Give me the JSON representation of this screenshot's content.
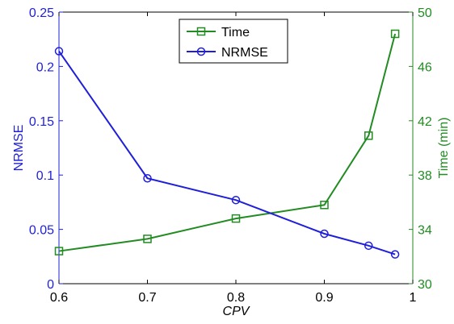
{
  "chart_data": {
    "type": "line",
    "title": "",
    "xlabel": "CPV",
    "ylabel_left": "NRMSE",
    "ylabel_right": "Time (min)",
    "xlim": [
      0.6,
      1.0
    ],
    "ylim_left": [
      0,
      0.25
    ],
    "ylim_right": [
      30,
      50
    ],
    "x_ticks": [
      "0.6",
      "0.7",
      "0.8",
      "0.9",
      "1"
    ],
    "y_left_ticks": [
      "0",
      "0.05",
      "0.1",
      "0.15",
      "0.2",
      "0.25"
    ],
    "y_right_ticks": [
      "30",
      "34",
      "38",
      "42",
      "46",
      "50"
    ],
    "grid": false,
    "legend_position": "top-center",
    "series": [
      {
        "name": "Time",
        "axis": "right",
        "marker": "square",
        "color": "#228B22",
        "x": [
          0.6,
          0.7,
          0.8,
          0.9,
          0.95,
          0.98
        ],
        "values": [
          32.4,
          33.3,
          34.8,
          35.8,
          40.9,
          48.4
        ]
      },
      {
        "name": "NRMSE",
        "axis": "left",
        "marker": "circle",
        "color": "#1f1fd9",
        "x": [
          0.6,
          0.7,
          0.8,
          0.9,
          0.95,
          0.98
        ],
        "values": [
          0.214,
          0.097,
          0.077,
          0.046,
          0.035,
          0.027
        ]
      }
    ],
    "colors": {
      "left_axis": "#1f1fd9",
      "right_axis": "#228B22",
      "frame": "#000000"
    }
  }
}
